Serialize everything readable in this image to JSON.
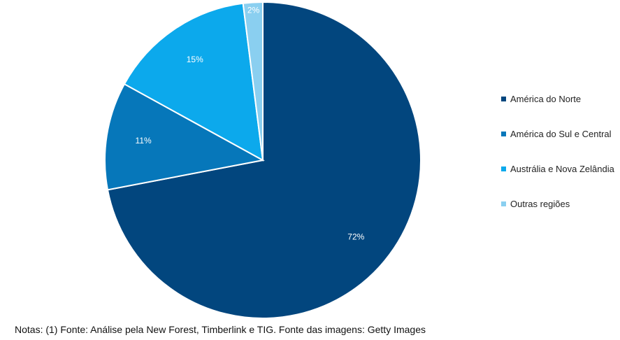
{
  "chart_data": {
    "type": "pie",
    "title": "",
    "slices": [
      {
        "label": "América do Norte",
        "value": 72,
        "value_label": "72%",
        "color": "#02467E"
      },
      {
        "label": "América do Sul e Central",
        "value": 11,
        "value_label": "11%",
        "color": "#0677BA"
      },
      {
        "label": "Austrália e Nova Zelândia",
        "value": 15,
        "value_label": "15%",
        "color": "#0CA9EC"
      },
      {
        "label": "Outras regiões",
        "value": 2,
        "value_label": "2%",
        "color": "#8ACFF0"
      }
    ],
    "start_angle_deg": 0,
    "direction": "clockwise",
    "legend_position": "right"
  },
  "footnote": "Notas: (1) Fonte: Análise pela New Forest, Timberlink e TIG. Fonte das imagens: Getty Images"
}
